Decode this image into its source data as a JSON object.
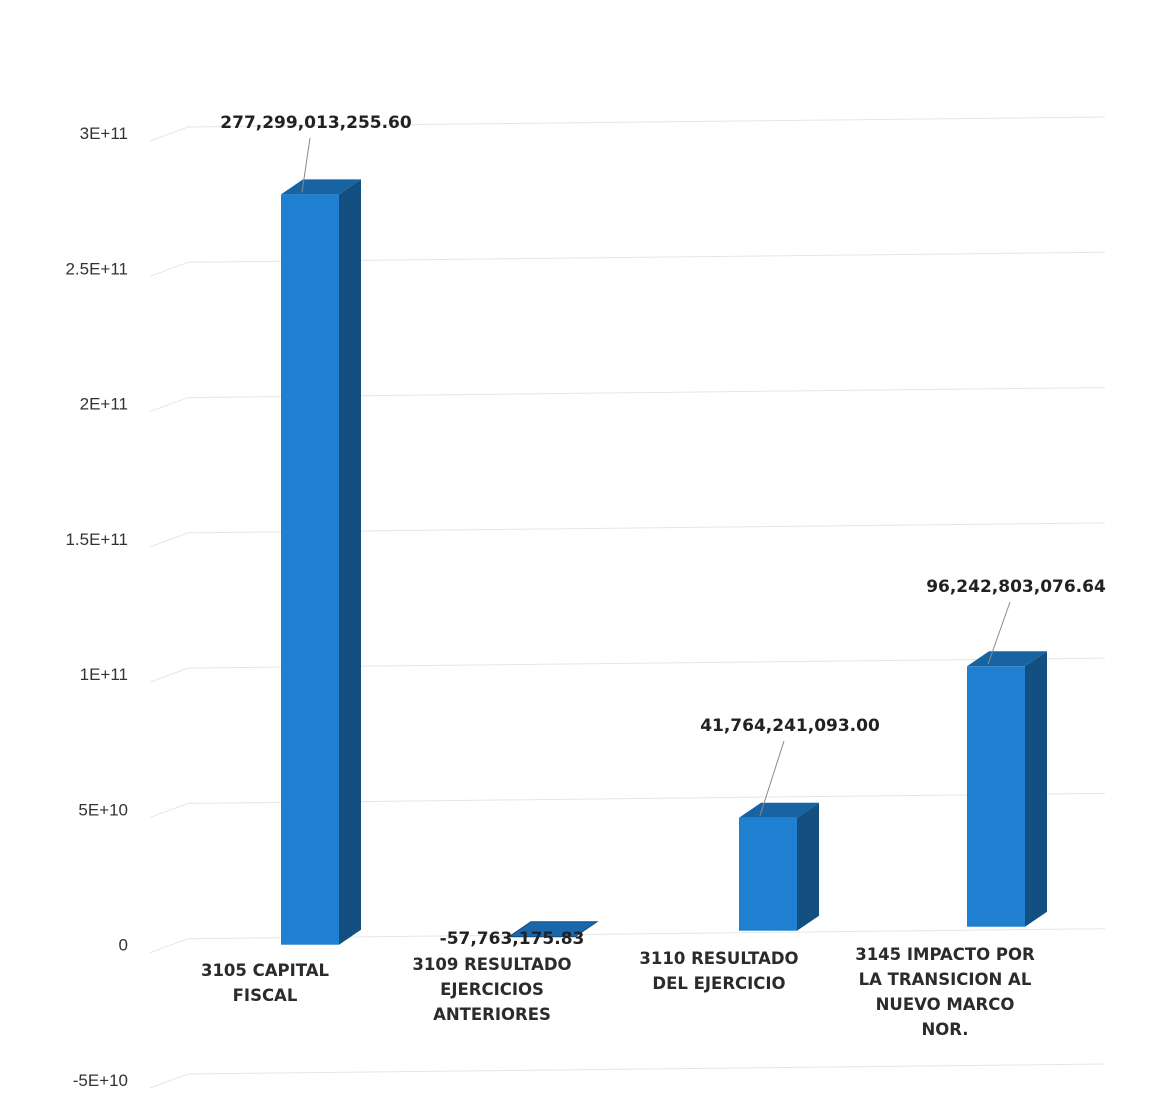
{
  "chart_data": {
    "type": "bar",
    "title": "",
    "xlabel": "",
    "ylabel": "",
    "ylim": [
      -50000000000,
      300000000000
    ],
    "y_ticks": [
      {
        "value": 300000000000,
        "label": "3E+11"
      },
      {
        "value": 250000000000,
        "label": "2.5E+11"
      },
      {
        "value": 200000000000,
        "label": "2E+11"
      },
      {
        "value": 150000000000,
        "label": "1.5E+11"
      },
      {
        "value": 100000000000,
        "label": "1E+11"
      },
      {
        "value": 50000000000,
        "label": "5E+10"
      },
      {
        "value": 0,
        "label": "0"
      },
      {
        "value": -50000000000,
        "label": "-5E+10"
      }
    ],
    "grid": true,
    "legend": "none",
    "style": "3d-column",
    "bar_color": "#1f7fd0",
    "categories": [
      [
        "3105  CAPITAL",
        "FISCAL"
      ],
      [
        "3109 RESULTADO",
        "EJERCICIOS",
        "ANTERIORES"
      ],
      [
        "3110  RESULTADO",
        "DEL EJERCICIO"
      ],
      [
        "3145  IMPACTO POR",
        "LA TRANSICION AL",
        "NUEVO MARCO",
        "NOR."
      ]
    ],
    "values": [
      277299013255.6,
      -57763175.83,
      41764241093.0,
      96242803076.64
    ],
    "data_labels": [
      "277,299,013,255.60",
      "-57,763,175.83",
      "41,764,241,093.00",
      "96,242,803,076.64"
    ]
  }
}
